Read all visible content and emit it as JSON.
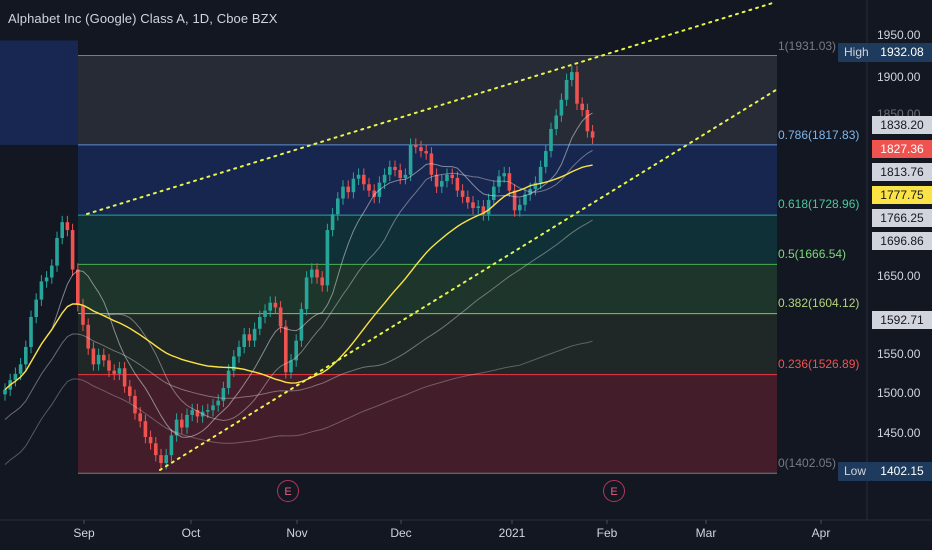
{
  "header": {
    "title": "Alphabet Inc (Google) Class A, 1D, Cboe BZX"
  },
  "price_axis": {
    "ticks": [
      "1950.00",
      "1900.00",
      "1850.00",
      "1650.00",
      "1550.00",
      "1500.00",
      "1450.00"
    ],
    "tags": {
      "high_label": "High",
      "high_value": "1932.08",
      "t1": "1838.20",
      "last": "1827.36",
      "t2": "1813.76",
      "ma": "1777.75",
      "t3": "1766.25",
      "t4": "1696.86",
      "t5": "1592.71",
      "low_label": "Low",
      "low_value": "1402.15"
    }
  },
  "time_axis": {
    "labels": [
      "Sep",
      "Oct",
      "Nov",
      "Dec",
      "2021",
      "Feb",
      "Mar",
      "Apr"
    ]
  },
  "fib_labels": {
    "l1": "1(1931.03)",
    "l0786": "0.786(1817.83)",
    "l0618": "0.618(1728.96)",
    "l05": "0.5(1666.54)",
    "l0382": "0.382(1604.12)",
    "l0236": "0.236(1526.89)",
    "l0": "0(1402.05)"
  },
  "events": {
    "e1": "E",
    "e2": "E"
  },
  "colors": {
    "up": "#26a69a",
    "down": "#ef5350",
    "ma_yellow": "#fbe245",
    "trend": "#e7f74a",
    "bg": "#131722"
  },
  "chart_data": {
    "type": "candlestick",
    "symbol": "Alphabet Inc (Google) Class A",
    "interval": "1D",
    "exchange": "Cboe BZX",
    "close": [
      1508,
      1520,
      1528,
      1540,
      1562,
      1600,
      1622,
      1645,
      1650,
      1665,
      1700,
      1720,
      1710,
      1660,
      1615,
      1590,
      1560,
      1540,
      1552,
      1545,
      1532,
      1528,
      1535,
      1512,
      1500,
      1478,
      1468,
      1448,
      1440,
      1425,
      1415,
      1425,
      1450,
      1470,
      1460,
      1476,
      1482,
      1474,
      1480,
      1482,
      1488,
      1494,
      1510,
      1532,
      1550,
      1562,
      1578,
      1570,
      1585,
      1600,
      1608,
      1618,
      1612,
      1588,
      1530,
      1545,
      1570,
      1610,
      1650,
      1660,
      1650,
      1640,
      1710,
      1730,
      1750,
      1765,
      1758,
      1775,
      1780,
      1768,
      1760,
      1752,
      1770,
      1780,
      1790,
      1786,
      1776,
      1780,
      1818,
      1815,
      1810,
      1807,
      1780,
      1765,
      1772,
      1780,
      1776,
      1760,
      1752,
      1745,
      1738,
      1740,
      1730,
      1748,
      1765,
      1778,
      1782,
      1760,
      1735,
      1742,
      1755,
      1762,
      1770,
      1790,
      1810,
      1838,
      1855,
      1875,
      1900,
      1910,
      1870,
      1862,
      1835,
      1827
    ]
  }
}
